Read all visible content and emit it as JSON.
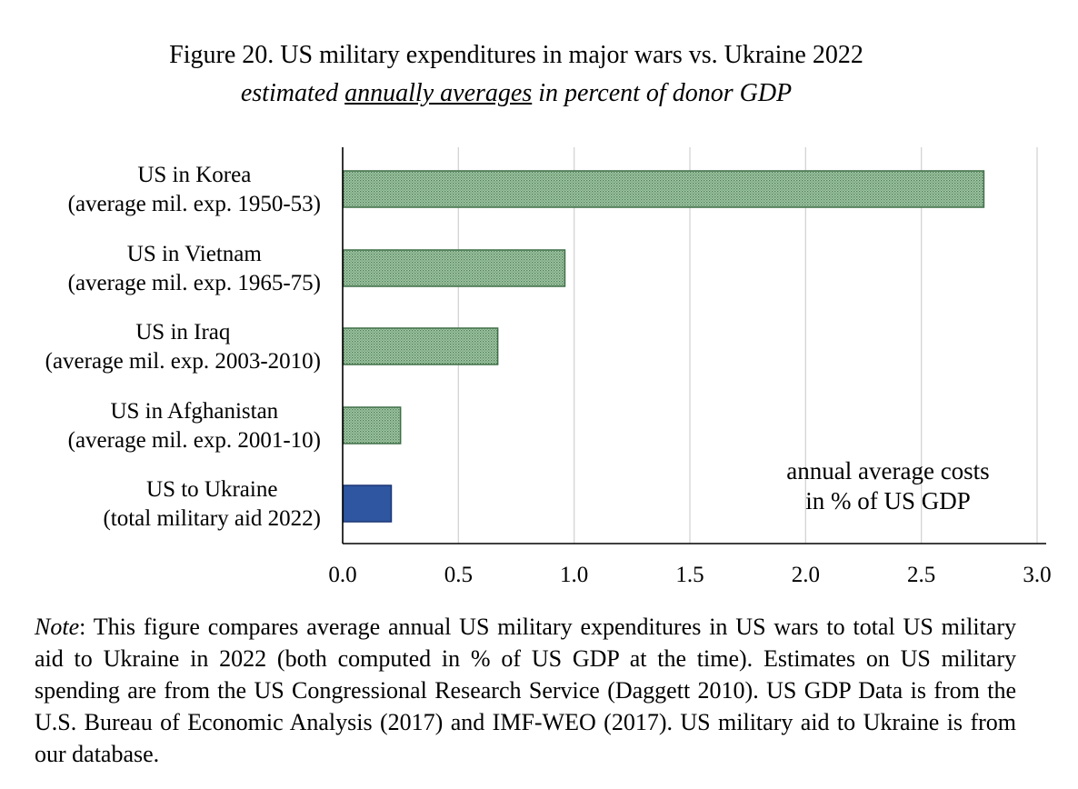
{
  "figure": {
    "title": "Figure 20. US military expenditures in major wars vs. Ukraine 2022",
    "subtitle_part1": "estimated ",
    "subtitle_underlined": "annually averages",
    "subtitle_part2": " in percent of donor GDP"
  },
  "chart_data": {
    "type": "bar",
    "orientation": "horizontal",
    "categories": [
      [
        "US in Korea",
        "(average mil. exp. 1950-53)"
      ],
      [
        "US in Vietnam",
        "(average mil. exp. 1965-75)"
      ],
      [
        "US in Iraq",
        "(average mil. exp. 2003-2010)"
      ],
      [
        "US in Afghanistan",
        "(average mil. exp. 2001-10)"
      ],
      [
        "US to Ukraine",
        "(total military aid 2022)"
      ]
    ],
    "values": [
      2.77,
      0.96,
      0.67,
      0.25,
      0.21
    ],
    "xlim": [
      0,
      3
    ],
    "xticks": [
      "0.0",
      "0.5",
      "1.0",
      "1.5",
      "2.0",
      "2.5",
      "3.0"
    ],
    "grid": "vertical",
    "annotation": [
      "annual average costs",
      "in % of US GDP"
    ],
    "colors": {
      "war_bars": "#7fae86",
      "war_bars_fill": "#a8ccab",
      "war_bars_edge": "#3f6e46",
      "ukraine_bar": "#2f56a0",
      "ukraine_bar_edge": "#1b3775",
      "grid": "#d4d4d4",
      "axis": "#000000"
    }
  },
  "note": {
    "label": "Note",
    "text": ": This figure compares average annual US military expenditures in US wars to total US military aid to Ukraine in 2022 (both computed in % of US GDP at the time). Estimates on US military spending are from the US Congressional Research Service (Daggett 2010). US GDP Data is from the U.S. Bureau of Economic Analysis (2017) and IMF-WEO (2017). US military aid to Ukraine is from our database."
  }
}
